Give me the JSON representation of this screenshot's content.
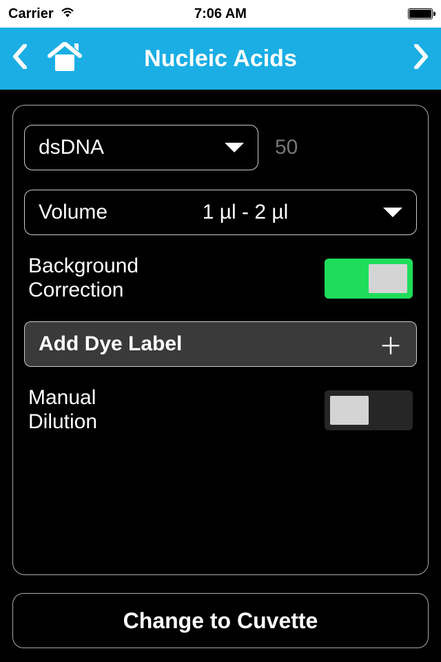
{
  "status": {
    "carrier": "Carrier",
    "time": "7:06 AM"
  },
  "header": {
    "title": "Nucleic Acids"
  },
  "sampleType": {
    "selected": "dsDNA",
    "factor": "50"
  },
  "volume": {
    "label": "Volume",
    "value": "1 µl - 2 µl"
  },
  "backgroundCorrection": {
    "label": "Background Correction",
    "on": true
  },
  "addDye": {
    "label": "Add Dye Label"
  },
  "manualDilution": {
    "label": "Manual Dilution",
    "on": false
  },
  "bottomButton": {
    "label": "Change to Cuvette"
  },
  "colors": {
    "headerBg": "#1aaee5",
    "switchOn": "#1fdd5a",
    "panelBorder": "#aaaaaa",
    "background": "#000000"
  }
}
